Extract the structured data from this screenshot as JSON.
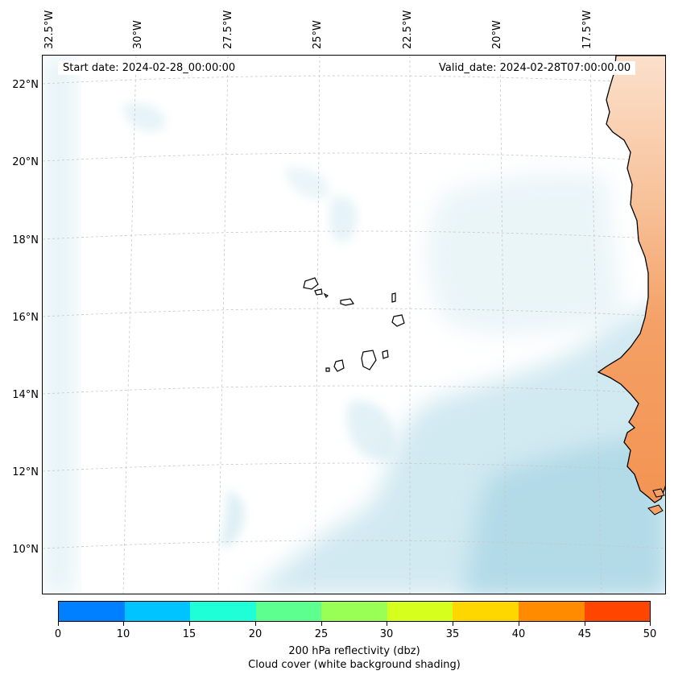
{
  "map": {
    "lon_labels": [
      "32.5°W",
      "30°W",
      "27.5°W",
      "25°W",
      "22.5°W",
      "20°W",
      "17.5°W"
    ],
    "lat_labels": [
      "22°N",
      "20°N",
      "18°N",
      "16°N",
      "14°N",
      "12°N",
      "10°N"
    ],
    "start_date": "Start date: 2024-02-28_00:00:00",
    "valid_date": "Valid_date: 2024-02-28T07:00:00.00",
    "land_color": "#f4a066",
    "cloud_color": "#add8e6"
  },
  "colorbar": {
    "colors": [
      "#0080ff",
      "#00c4ff",
      "#1effd7",
      "#5dff8f",
      "#9aff54",
      "#d7ff1e",
      "#ffd700",
      "#ff8c00",
      "#ff4500"
    ],
    "ticks": [
      "0",
      "10",
      "15",
      "20",
      "25",
      "30",
      "35",
      "40",
      "45",
      "50"
    ],
    "label": "200 hPa reflectivity (dbz)",
    "sublabel": "Cloud cover (white background shading)"
  }
}
